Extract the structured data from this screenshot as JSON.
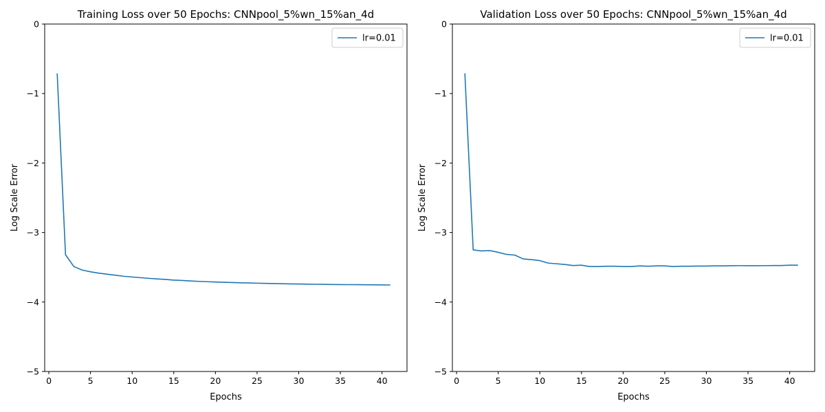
{
  "chart_data": [
    {
      "type": "line",
      "title": "Training Loss over 50 Epochs: CNNpool_5%wn_15%an_4d",
      "xlabel": "Epochs",
      "ylabel": "Log Scale Error",
      "xlim": [
        -0.5,
        43
      ],
      "ylim": [
        -5,
        0
      ],
      "xticks": [
        0,
        5,
        10,
        15,
        20,
        25,
        30,
        35,
        40
      ],
      "yticks": [
        0,
        -1,
        -2,
        -3,
        -4,
        -5
      ],
      "xtick_labels": [
        "0",
        "5",
        "10",
        "15",
        "20",
        "25",
        "30",
        "35",
        "40"
      ],
      "ytick_labels": [
        "0",
        "−1",
        "−2",
        "−3",
        "−4",
        "−5"
      ],
      "grid": false,
      "legend_position": "top-right",
      "series": [
        {
          "name": "lr=0.01",
          "color": "#1f77b4",
          "x": [
            1,
            2,
            3,
            4,
            5,
            6,
            7,
            8,
            9,
            10,
            11,
            12,
            13,
            14,
            15,
            16,
            17,
            18,
            19,
            20,
            21,
            22,
            23,
            24,
            25,
            26,
            27,
            28,
            29,
            30,
            31,
            32,
            33,
            34,
            35,
            36,
            37,
            38,
            39,
            40,
            41
          ],
          "y": [
            -0.71,
            -3.32,
            -3.49,
            -3.54,
            -3.565,
            -3.585,
            -3.6,
            -3.615,
            -3.63,
            -3.64,
            -3.65,
            -3.66,
            -3.668,
            -3.675,
            -3.685,
            -3.69,
            -3.697,
            -3.703,
            -3.708,
            -3.712,
            -3.716,
            -3.72,
            -3.723,
            -3.726,
            -3.729,
            -3.732,
            -3.735,
            -3.737,
            -3.739,
            -3.741,
            -3.743,
            -3.745,
            -3.746,
            -3.748,
            -3.749,
            -3.75,
            -3.751,
            -3.752,
            -3.753,
            -3.754,
            -3.755
          ]
        }
      ]
    },
    {
      "type": "line",
      "title": "Validation Loss over 50 Epochs: CNNpool_5%wn_15%an_4d",
      "xlabel": "Epochs",
      "ylabel": "Log Scale Error",
      "xlim": [
        -0.5,
        43
      ],
      "ylim": [
        -5,
        0
      ],
      "xticks": [
        0,
        5,
        10,
        15,
        20,
        25,
        30,
        35,
        40
      ],
      "yticks": [
        0,
        -1,
        -2,
        -3,
        -4,
        -5
      ],
      "xtick_labels": [
        "0",
        "5",
        "10",
        "15",
        "20",
        "25",
        "30",
        "35",
        "40"
      ],
      "ytick_labels": [
        "0",
        "−1",
        "−2",
        "−3",
        "−4",
        "−5"
      ],
      "grid": false,
      "legend_position": "top-right",
      "series": [
        {
          "name": "lr=0.01",
          "color": "#1f77b4",
          "x": [
            1,
            2,
            3,
            4,
            5,
            6,
            7,
            8,
            9,
            10,
            11,
            12,
            13,
            14,
            15,
            16,
            17,
            18,
            19,
            20,
            21,
            22,
            23,
            24,
            25,
            26,
            27,
            28,
            29,
            30,
            31,
            32,
            33,
            34,
            35,
            36,
            37,
            38,
            39,
            40,
            41
          ],
          "y": [
            -0.71,
            -3.25,
            -3.265,
            -3.26,
            -3.285,
            -3.315,
            -3.325,
            -3.38,
            -3.39,
            -3.405,
            -3.44,
            -3.45,
            -3.46,
            -3.475,
            -3.47,
            -3.49,
            -3.49,
            -3.485,
            -3.485,
            -3.49,
            -3.49,
            -3.48,
            -3.485,
            -3.48,
            -3.48,
            -3.49,
            -3.485,
            -3.485,
            -3.483,
            -3.483,
            -3.48,
            -3.48,
            -3.478,
            -3.477,
            -3.478,
            -3.478,
            -3.477,
            -3.475,
            -3.475,
            -3.47,
            -3.47
          ]
        }
      ]
    }
  ]
}
